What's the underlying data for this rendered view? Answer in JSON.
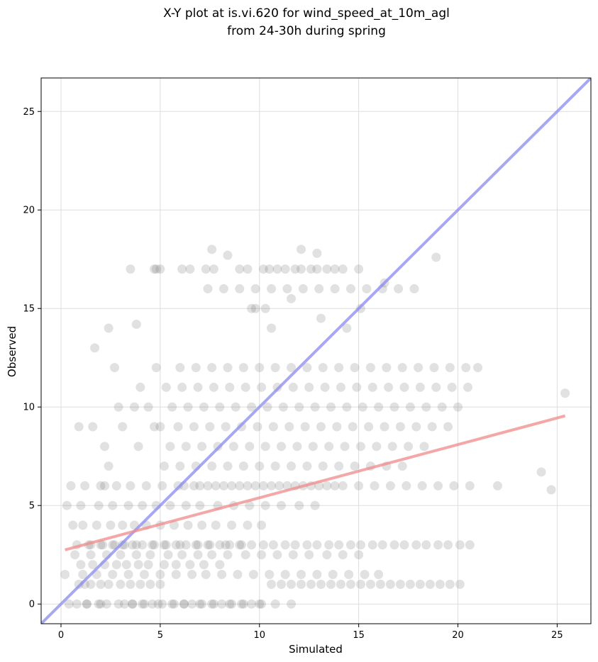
{
  "chart_data": {
    "type": "scatter",
    "title": [
      "X-Y plot at is.vi.620 for wind_speed_at_10m_agl",
      "from 24-30h during spring"
    ],
    "xlabel": "Simulated",
    "ylabel": "Observed",
    "xlim": [
      -1.0,
      26.7
    ],
    "ylim": [
      -1.0,
      26.7
    ],
    "xticks": [
      "0",
      "5",
      "10",
      "15",
      "20",
      "25"
    ],
    "yticks": [
      "0",
      "5",
      "10",
      "15",
      "20",
      "25"
    ],
    "grid": true,
    "legend": "none",
    "colors": {
      "points": "#777777",
      "identity_line": "#8a8af0",
      "fit_line": "#f08a8a",
      "grid": "#dddddd",
      "axes": "#000000"
    },
    "lines": [
      {
        "name": "",
        "kind": "identity",
        "x": [
          -1.0,
          26.7
        ],
        "y": [
          -1.0,
          26.7
        ]
      },
      {
        "name": "",
        "kind": "fit",
        "x": [
          0.2,
          25.4
        ],
        "y": [
          2.75,
          9.55
        ]
      }
    ],
    "points": {
      "x": [
        0.9,
        1.2,
        1.5,
        2.0,
        2.4,
        3.0,
        3.5,
        4.0,
        4.5,
        5.0,
        1.0,
        1.6,
        2.2,
        2.8,
        3.3,
        3.9,
        4.4,
        5.2,
        5.8,
        6.5,
        7.2,
        8.0,
        0.8,
        1.4,
        2.1,
        2.7,
        3.2,
        3.8,
        4.6,
        5.3,
        6.0,
        6.8,
        7.5,
        8.3,
        9.0,
        0.6,
        1.1,
        1.8,
        2.5,
        3.1,
        3.7,
        4.3,
        5.0,
        5.7,
        6.4,
        7.1,
        7.8,
        8.6,
        9.4,
        10.1,
        0.4,
        1.3,
        2.0,
        2.9,
        3.6,
        4.2,
        4.9,
        5.6,
        6.2,
        7.0,
        7.7,
        8.5,
        9.2,
        10.0,
        10.8,
        11.6,
        0.3,
        1.0,
        1.9,
        2.6,
        3.4,
        4.1,
        4.8,
        5.5,
        6.3,
        7.0,
        7.9,
        8.7,
        9.5,
        10.3,
        11.1,
        12.0,
        12.8,
        0.5,
        1.2,
        2.0,
        2.8,
        3.5,
        4.3,
        5.1,
        5.9,
        6.7,
        7.4,
        8.2,
        9.0,
        9.8,
        10.6,
        11.4,
        12.2,
        13.0,
        13.8,
        0.7,
        1.5,
        2.3,
        3.0,
        3.8,
        4.5,
        5.4,
        6.1,
        6.9,
        7.6,
        8.4,
        9.3,
        10.1,
        10.9,
        11.7,
        12.5,
        13.4,
        14.2,
        15.0,
        0.2,
        1.1,
        1.8,
        2.6,
        3.4,
        4.2,
        5.0,
        5.8,
        6.6,
        7.3,
        8.1,
        8.9,
        9.7,
        10.5,
        11.3,
        12.1,
        12.9,
        13.7,
        14.5,
        15.3,
        16.0,
        0.9,
        2.4,
        3.9,
        5.2,
        6.0,
        6.8,
        7.6,
        8.4,
        9.2,
        10.0,
        10.8,
        11.6,
        12.4,
        13.2,
        14.0,
        14.8,
        15.6,
        16.4,
        17.2,
        1.6,
        3.1,
        4.7,
        5.5,
        6.3,
        7.1,
        7.9,
        8.7,
        9.5,
        10.3,
        11.1,
        11.9,
        12.7,
        13.5,
        14.3,
        15.1,
        15.9,
        16.7,
        17.5,
        18.3,
        2.2,
        3.7,
        5.0,
        5.9,
        6.7,
        7.5,
        8.3,
        9.1,
        9.9,
        10.7,
        11.5,
        12.3,
        13.1,
        13.9,
        14.7,
        15.5,
        16.3,
        17.1,
        17.9,
        18.7,
        19.5,
        2.9,
        4.4,
        5.6,
        6.4,
        7.2,
        8.0,
        8.8,
        9.6,
        10.4,
        11.2,
        12.0,
        12.8,
        13.6,
        14.4,
        15.2,
        16.0,
        16.8,
        17.6,
        18.4,
        19.2,
        20.0,
        4.0,
        5.3,
        6.1,
        6.9,
        7.7,
        8.5,
        9.3,
        10.1,
        10.9,
        11.7,
        12.5,
        13.3,
        14.1,
        14.9,
        15.7,
        16.5,
        17.3,
        18.1,
        18.9,
        19.7,
        20.5,
        4.8,
        6.0,
        6.8,
        7.6,
        8.4,
        9.2,
        10.0,
        10.8,
        11.6,
        12.4,
        13.2,
        14.0,
        14.8,
        15.6,
        16.4,
        17.2,
        18.0,
        18.8,
        19.6,
        20.4,
        21.0,
        6.2,
        7.0,
        7.8,
        8.6,
        9.4,
        10.2,
        11.0,
        11.8,
        12.6,
        13.4,
        14.2,
        15.0,
        15.8,
        16.6,
        17.4,
        18.2,
        19.0,
        19.8,
        20.6,
        22.0,
        24.2,
        24.7,
        25.4,
        7.4,
        8.2,
        9.0,
        9.8,
        10.6,
        11.4,
        12.2,
        13.0,
        13.8,
        14.6,
        15.4,
        16.2,
        17.0,
        17.8,
        2.4,
        1.7,
        2.7,
        3.8,
        2.2,
        3.5,
        4.8,
        4.7,
        5.0,
        6.1,
        6.5,
        7.3,
        7.7,
        9.0,
        9.4,
        10.2,
        10.5,
        10.9,
        11.3,
        11.8,
        12.1,
        12.6,
        12.9,
        13.4,
        13.8,
        14.2,
        15.0,
        7.6,
        12.9,
        18.9,
        16.3,
        13.1,
        9.6,
        12.1,
        8.4,
        10.3,
        11.6,
        9.8,
        10.6,
        14.4,
        15.1,
        0.8,
        1.3,
        1.9,
        2.3,
        3.2,
        3.6,
        4.1,
        4.6,
        5.1,
        5.7,
        6.2,
        6.6,
        7.1,
        7.6,
        8.1,
        8.6,
        9.1,
        9.6,
        10.1,
        10.6,
        11.1,
        11.6,
        12.1,
        12.6,
        13.1,
        13.6,
        14.1,
        14.6,
        15.1,
        15.6,
        16.1,
        16.6,
        17.1,
        17.6,
        18.1,
        18.6,
        19.1,
        19.6,
        20.1,
        1.5,
        2.0,
        2.6,
        3.1,
        3.6,
        4.1,
        4.7,
        5.2,
        5.8,
        6.3,
        6.9,
        7.4,
        8.0,
        8.5,
        9.1,
        9.6,
        10.2,
        10.7,
        11.3,
        11.8,
        12.4,
        12.9,
        13.5,
        14.0,
        14.6,
        15.1,
        15.7,
        16.2,
        16.8,
        17.3,
        17.9,
        18.4,
        19.0,
        19.5,
        20.1,
        20.6
      ],
      "y": [
        1.0,
        1.0,
        1.0,
        1.0,
        1.0,
        1.0,
        1.0,
        1.0,
        1.0,
        1.0,
        2.0,
        2.0,
        2.0,
        2.0,
        2.0,
        2.0,
        2.0,
        2.0,
        2.0,
        2.0,
        2.0,
        2.0,
        3.0,
        3.0,
        3.0,
        3.0,
        3.0,
        3.0,
        3.0,
        3.0,
        3.0,
        3.0,
        3.0,
        3.0,
        3.0,
        4.0,
        4.0,
        4.0,
        4.0,
        4.0,
        4.0,
        4.0,
        4.0,
        4.0,
        4.0,
        4.0,
        4.0,
        4.0,
        4.0,
        4.0,
        0.0,
        0.0,
        0.0,
        0.0,
        0.0,
        0.0,
        0.0,
        0.0,
        0.0,
        0.0,
        0.0,
        0.0,
        0.0,
        0.0,
        0.0,
        0.0,
        5.0,
        5.0,
        5.0,
        5.0,
        5.0,
        5.0,
        5.0,
        5.0,
        5.0,
        5.0,
        5.0,
        5.0,
        5.0,
        5.0,
        5.0,
        5.0,
        5.0,
        6.0,
        6.0,
        6.0,
        6.0,
        6.0,
        6.0,
        6.0,
        6.0,
        6.0,
        6.0,
        6.0,
        6.0,
        6.0,
        6.0,
        6.0,
        6.0,
        6.0,
        6.0,
        2.5,
        2.5,
        2.5,
        2.5,
        2.5,
        2.5,
        2.5,
        2.5,
        2.5,
        2.5,
        2.5,
        2.5,
        2.5,
        2.5,
        2.5,
        2.5,
        2.5,
        2.5,
        2.5,
        1.5,
        1.5,
        1.5,
        1.5,
        1.5,
        1.5,
        1.5,
        1.5,
        1.5,
        1.5,
        1.5,
        1.5,
        1.5,
        1.5,
        1.5,
        1.5,
        1.5,
        1.5,
        1.5,
        1.5,
        1.5,
        9.0,
        7.0,
        8.0,
        7.0,
        7.0,
        7.0,
        7.0,
        7.0,
        7.0,
        7.0,
        7.0,
        7.0,
        7.0,
        7.0,
        7.0,
        7.0,
        7.0,
        7.0,
        7.0,
        9.0,
        9.0,
        9.0,
        8.0,
        8.0,
        8.0,
        8.0,
        8.0,
        8.0,
        8.0,
        8.0,
        8.0,
        8.0,
        8.0,
        8.0,
        8.0,
        8.0,
        8.0,
        8.0,
        8.0,
        6.0,
        10.0,
        9.0,
        9.0,
        9.0,
        9.0,
        9.0,
        9.0,
        9.0,
        9.0,
        9.0,
        9.0,
        9.0,
        9.0,
        9.0,
        9.0,
        9.0,
        9.0,
        9.0,
        9.0,
        9.0,
        10.0,
        10.0,
        10.0,
        10.0,
        10.0,
        10.0,
        10.0,
        10.0,
        10.0,
        10.0,
        10.0,
        10.0,
        10.0,
        10.0,
        10.0,
        10.0,
        10.0,
        10.0,
        10.0,
        10.0,
        10.0,
        11.0,
        11.0,
        11.0,
        11.0,
        11.0,
        11.0,
        11.0,
        11.0,
        11.0,
        11.0,
        11.0,
        11.0,
        11.0,
        11.0,
        11.0,
        11.0,
        11.0,
        11.0,
        11.0,
        11.0,
        11.0,
        12.0,
        12.0,
        12.0,
        12.0,
        12.0,
        12.0,
        12.0,
        12.0,
        12.0,
        12.0,
        12.0,
        12.0,
        12.0,
        12.0,
        12.0,
        12.0,
        12.0,
        12.0,
        12.0,
        12.0,
        12.0,
        6.0,
        6.0,
        6.0,
        6.0,
        6.0,
        6.0,
        6.0,
        6.0,
        6.0,
        6.0,
        6.0,
        6.0,
        6.0,
        6.0,
        6.0,
        6.0,
        6.0,
        6.0,
        6.0,
        6.0,
        6.7,
        5.8,
        10.7,
        16.0,
        16.0,
        16.0,
        16.0,
        16.0,
        16.0,
        16.0,
        16.0,
        16.0,
        16.0,
        16.0,
        16.0,
        16.0,
        16.0,
        14.0,
        13.0,
        12.0,
        14.2,
        8.0,
        17.0,
        17.0,
        17.0,
        17.0,
        17.0,
        17.0,
        17.0,
        17.0,
        17.0,
        17.0,
        17.0,
        17.0,
        17.0,
        17.0,
        17.0,
        17.0,
        17.0,
        17.0,
        17.0,
        17.0,
        17.0,
        17.0,
        18.0,
        17.8,
        17.6,
        16.3,
        14.5,
        15.0,
        18.0,
        17.7,
        15.0,
        15.5,
        15.0,
        14.0,
        14.0,
        15.0,
        0.0,
        0.0,
        0.0,
        0.0,
        0.0,
        0.0,
        0.0,
        0.0,
        0.0,
        0.0,
        0.0,
        0.0,
        0.0,
        0.0,
        0.0,
        0.0,
        0.0,
        0.0,
        0.0,
        1.0,
        1.0,
        1.0,
        1.0,
        1.0,
        1.0,
        1.0,
        1.0,
        1.0,
        1.0,
        1.0,
        1.0,
        1.0,
        1.0,
        1.0,
        1.0,
        1.0,
        1.0,
        1.0,
        1.0,
        3.0,
        3.0,
        3.0,
        3.0,
        3.0,
        3.0,
        3.0,
        3.0,
        3.0,
        3.0,
        3.0,
        3.0,
        3.0,
        3.0,
        3.0,
        3.0,
        3.0,
        3.0,
        3.0,
        3.0,
        3.0,
        3.0,
        3.0,
        3.0,
        3.0,
        3.0,
        3.0,
        3.0,
        3.0,
        3.0,
        3.0,
        3.0,
        3.0,
        3.0,
        3.0,
        3.0
      ]
    }
  }
}
